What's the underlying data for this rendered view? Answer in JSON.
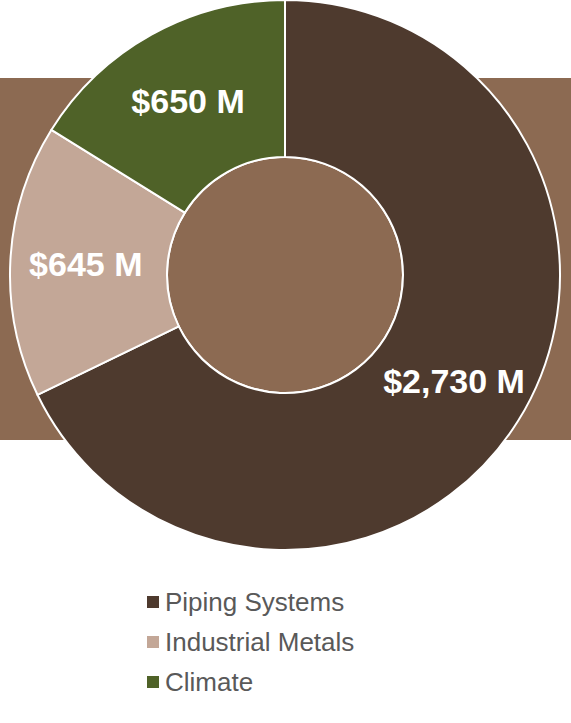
{
  "chart_data": {
    "type": "donut",
    "categories": [
      "Piping Systems",
      "Industrial Metals",
      "Climate"
    ],
    "values": [
      2730,
      645,
      650
    ],
    "value_labels": [
      "$2,730 M",
      "$645 M",
      "$650 M"
    ],
    "colors": [
      "#4e3a2e",
      "#c3a797",
      "#4f6228"
    ],
    "data_labels": true,
    "legend": "bottom"
  }
}
